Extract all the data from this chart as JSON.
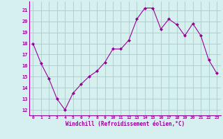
{
  "x": [
    0,
    1,
    2,
    3,
    4,
    5,
    6,
    7,
    8,
    9,
    10,
    11,
    12,
    13,
    14,
    15,
    16,
    17,
    18,
    19,
    20,
    21,
    22,
    23
  ],
  "y": [
    18.0,
    16.2,
    14.8,
    13.0,
    12.0,
    13.5,
    14.3,
    15.0,
    15.5,
    16.3,
    17.5,
    17.5,
    18.3,
    20.2,
    21.2,
    21.2,
    19.3,
    20.2,
    19.7,
    18.7,
    19.8,
    18.7,
    16.5,
    15.3
  ],
  "line_color": "#990099",
  "marker": "D",
  "marker_size": 2,
  "bg_color": "#d6f0f0",
  "grid_color": "#aacccc",
  "xlabel": "Windchill (Refroidissement éolien,°C)",
  "xlabel_color": "#990099",
  "tick_color": "#990099",
  "ylabel_ticks": [
    12,
    13,
    14,
    15,
    16,
    17,
    18,
    19,
    20,
    21
  ],
  "ylim": [
    11.5,
    21.8
  ],
  "xlim": [
    -0.5,
    23.5
  ],
  "xticks": [
    0,
    1,
    2,
    3,
    4,
    5,
    6,
    7,
    8,
    9,
    10,
    11,
    12,
    13,
    14,
    15,
    16,
    17,
    18,
    19,
    20,
    21,
    22,
    23
  ],
  "xtick_labels": [
    "0",
    "1",
    "2",
    "3",
    "4",
    "5",
    "6",
    "7",
    "8",
    "9",
    "10",
    "11",
    "12",
    "13",
    "14",
    "15",
    "16",
    "17",
    "18",
    "19",
    "20",
    "21",
    "22",
    "23"
  ]
}
